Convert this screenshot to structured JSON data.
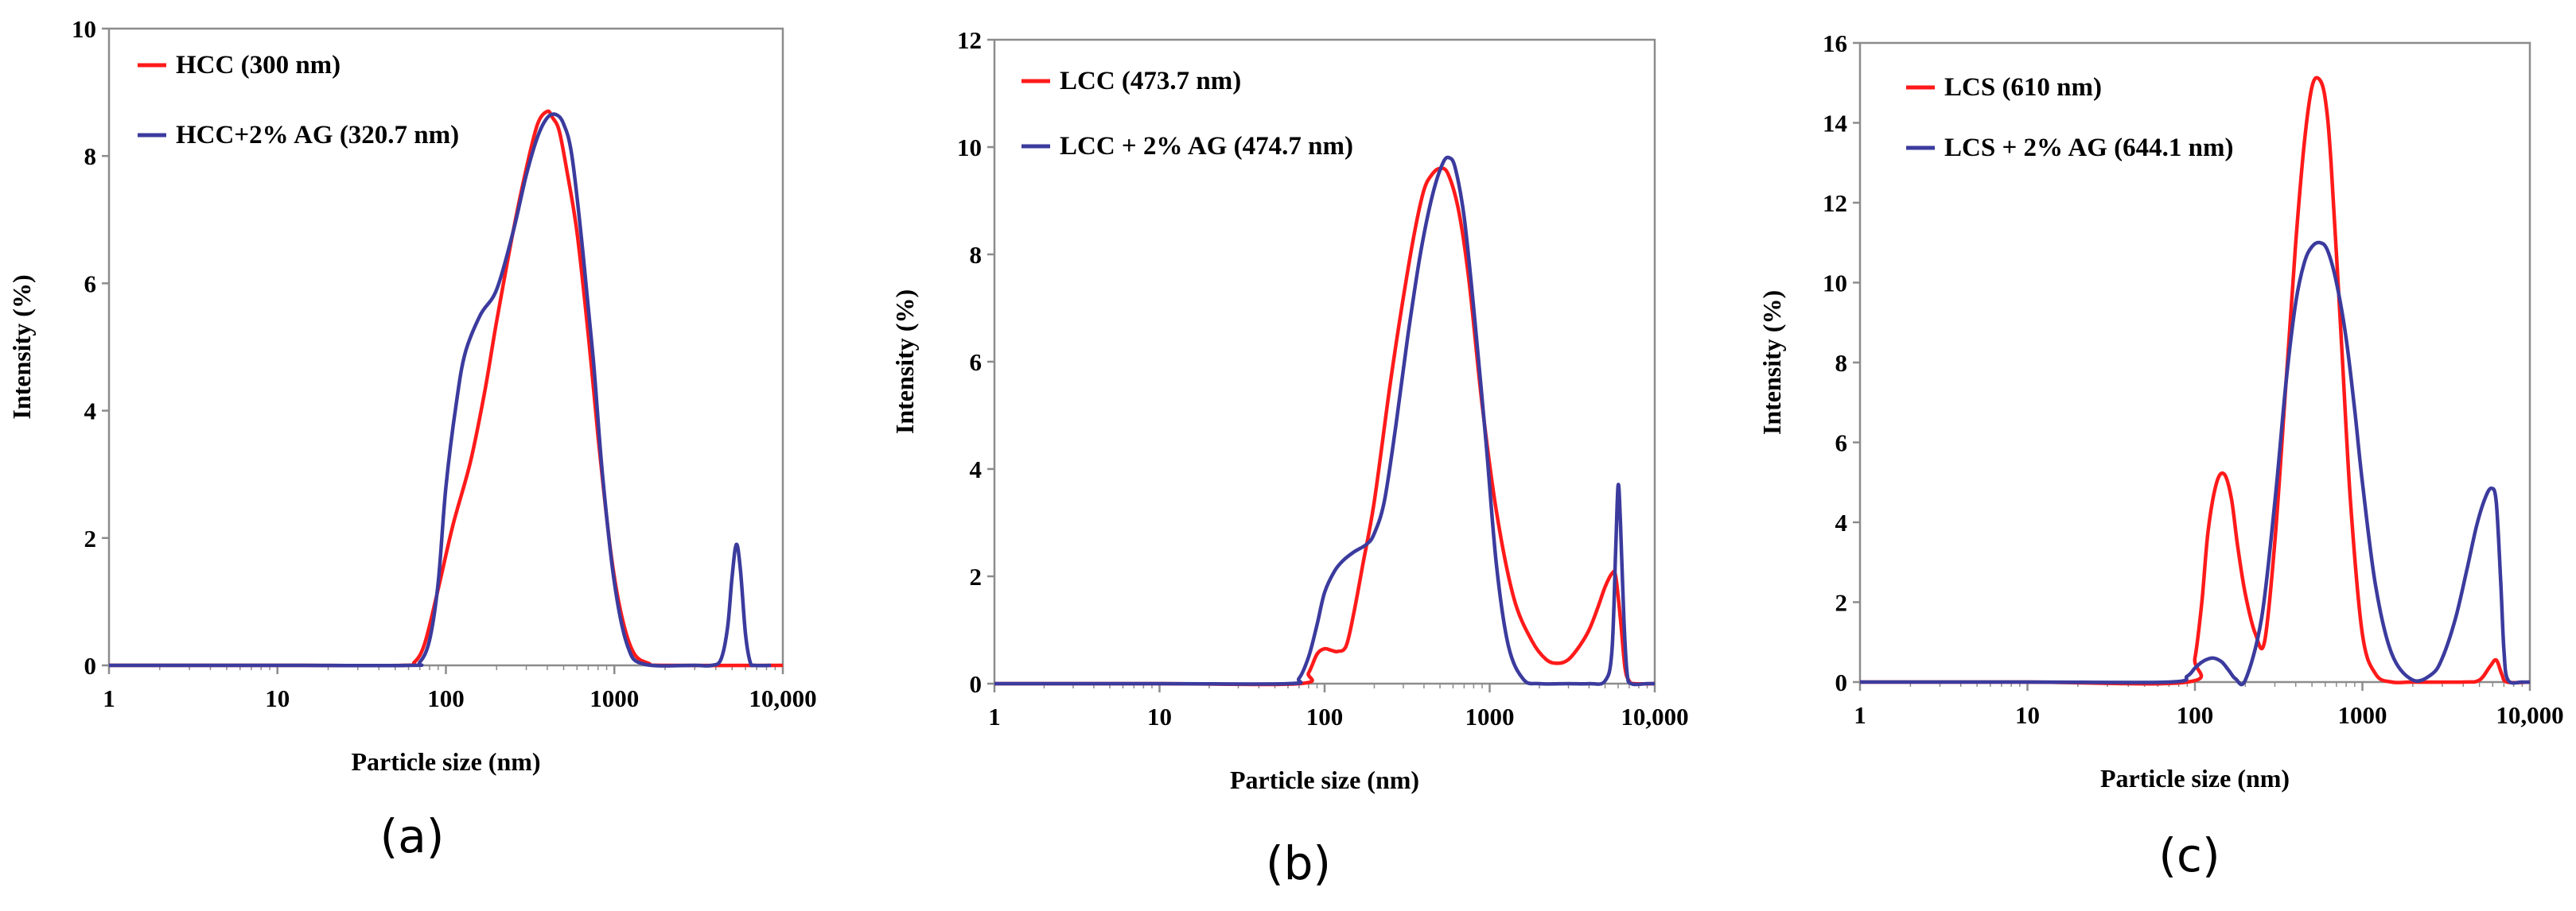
{
  "chart_data": [
    {
      "type": "line",
      "panel_label": "(a)",
      "xlabel": "Particle size (nm)",
      "ylabel": "Intensity (%)",
      "xscale": "log",
      "xlim": [
        1,
        10000
      ],
      "ylim": [
        0,
        10
      ],
      "xticks": [
        1,
        10,
        100,
        1000,
        10000
      ],
      "xtick_labels": [
        "1",
        "10",
        "100",
        "1000",
        "10,000"
      ],
      "yticks": [
        0,
        2,
        4,
        6,
        8,
        10
      ],
      "ytick_labels": [
        "0",
        "2",
        "4",
        "6",
        "8",
        "10"
      ],
      "legend_position": "top-left",
      "series": [
        {
          "name": "HCC (300 nm)",
          "color": "#ff1a1a",
          "x": [
            1,
            10,
            55,
            65,
            75,
            90,
            110,
            140,
            170,
            200,
            250,
            300,
            350,
            400,
            430,
            470,
            520,
            600,
            700,
            800,
            950,
            1100,
            1300,
            1600,
            2000,
            10000
          ],
          "y": [
            0,
            0,
            0,
            0.05,
            0.35,
            1.2,
            2.2,
            3.2,
            4.3,
            5.4,
            6.8,
            7.8,
            8.5,
            8.7,
            8.6,
            8.4,
            7.8,
            6.8,
            5.2,
            3.6,
            1.8,
            0.8,
            0.2,
            0.03,
            0,
            0
          ]
        },
        {
          "name": "HCC+2% AG (320.7 nm)",
          "color": "#3b3b9e",
          "x": [
            1,
            10,
            60,
            70,
            80,
            90,
            100,
            115,
            130,
            160,
            200,
            250,
            300,
            350,
            400,
            450,
            500,
            560,
            650,
            750,
            850,
            1000,
            1200,
            1500,
            3000,
            3800,
            4300,
            4700,
            5000,
            5300,
            5600,
            6000,
            6400,
            6800,
            8500
          ],
          "y": [
            0,
            0,
            0,
            0.05,
            0.4,
            1.3,
            2.8,
            4.1,
            4.9,
            5.5,
            5.9,
            6.8,
            7.7,
            8.3,
            8.6,
            8.65,
            8.5,
            8.0,
            6.5,
            4.8,
            3.0,
            1.3,
            0.3,
            0.02,
            0,
            0,
            0.1,
            0.6,
            1.4,
            1.9,
            1.5,
            0.5,
            0.05,
            0,
            0
          ]
        }
      ]
    },
    {
      "type": "line",
      "panel_label": "(b)",
      "xlabel": "Particle size (nm)",
      "ylabel": "Intensity (%)",
      "xscale": "log",
      "xlim": [
        1,
        10000
      ],
      "ylim": [
        0,
        12
      ],
      "xticks": [
        1,
        10,
        100,
        1000,
        10000
      ],
      "xtick_labels": [
        "1",
        "10",
        "100",
        "1000",
        "10,000"
      ],
      "yticks": [
        0,
        2,
        4,
        6,
        8,
        10,
        12
      ],
      "ytick_labels": [
        "0",
        "2",
        "4",
        "6",
        "8",
        "10",
        "12"
      ],
      "legend_position": "top-left",
      "series": [
        {
          "name": "LCC (473.7 nm)",
          "color": "#ff1a1a",
          "x": [
            1,
            10,
            70,
            80,
            90,
            100,
            110,
            120,
            135,
            150,
            170,
            200,
            250,
            300,
            350,
            400,
            450,
            500,
            560,
            650,
            750,
            900,
            1100,
            1400,
            1800,
            2200,
            2600,
            3000,
            3500,
            4000,
            4500,
            5000,
            5500,
            5800,
            6200,
            6600,
            7000,
            7500,
            10000
          ],
          "y": [
            0,
            0,
            0,
            0.2,
            0.55,
            0.65,
            0.62,
            0.6,
            0.7,
            1.3,
            2.2,
            3.4,
            5.6,
            7.2,
            8.4,
            9.2,
            9.5,
            9.6,
            9.5,
            8.8,
            7.5,
            5.2,
            3.2,
            1.6,
            0.8,
            0.45,
            0.38,
            0.45,
            0.7,
            1.0,
            1.4,
            1.8,
            2.05,
            2.0,
            1.2,
            0.3,
            0.05,
            0,
            0
          ]
        },
        {
          "name": "LCC + 2% AG (474.7 nm)",
          "color": "#3b3b9e",
          "x": [
            1,
            10,
            60,
            70,
            80,
            90,
            100,
            115,
            130,
            150,
            180,
            200,
            230,
            270,
            320,
            380,
            450,
            520,
            570,
            620,
            700,
            800,
            950,
            1100,
            1300,
            1600,
            2000,
            3000,
            4000,
            5000,
            5500,
            5800,
            6000,
            6200,
            6500,
            6800,
            7200,
            9000,
            10000
          ],
          "y": [
            0,
            0,
            0,
            0.1,
            0.5,
            1.1,
            1.7,
            2.1,
            2.3,
            2.45,
            2.6,
            2.8,
            3.4,
            4.8,
            6.5,
            8.0,
            9.1,
            9.7,
            9.8,
            9.6,
            8.7,
            7.0,
            4.5,
            2.2,
            0.7,
            0.08,
            0,
            0,
            0,
            0.05,
            0.6,
            2.5,
            3.7,
            3.0,
            1.2,
            0.2,
            0,
            0,
            0
          ]
        }
      ]
    },
    {
      "type": "line",
      "panel_label": "(c)",
      "xlabel": "Particle size (nm)",
      "ylabel": "Intensity (%)",
      "xscale": "log",
      "xlim": [
        1,
        10000
      ],
      "ylim": [
        0,
        16
      ],
      "xticks": [
        1,
        10,
        100,
        1000,
        10000
      ],
      "xtick_labels": [
        "1",
        "10",
        "100",
        "1000",
        "10,000"
      ],
      "yticks": [
        0,
        2,
        4,
        6,
        8,
        10,
        12,
        14,
        16
      ],
      "ytick_labels": [
        "0",
        "2",
        "4",
        "6",
        "8",
        "10",
        "12",
        "14",
        "16"
      ],
      "legend_position": "top-left",
      "series": [
        {
          "name": "LCS (610 nm)",
          "color": "#ff1a1a",
          "x": [
            1,
            10,
            90,
            100,
            110,
            120,
            135,
            150,
            165,
            180,
            200,
            230,
            260,
            300,
            350,
            400,
            450,
            500,
            550,
            600,
            650,
            750,
            850,
            1000,
            1200,
            1500,
            2000,
            4000,
            5000,
            5800,
            6300,
            6800,
            7300,
            10000
          ],
          "y": [
            0,
            0,
            0,
            0.6,
            2.0,
            3.8,
            5.0,
            5.2,
            4.6,
            3.4,
            2.2,
            1.2,
            1.0,
            3.5,
            7.5,
            11.0,
            13.5,
            14.9,
            15.1,
            14.6,
            13.0,
            8.5,
            4.5,
            1.2,
            0.2,
            0,
            0,
            0,
            0.05,
            0.4,
            0.55,
            0.2,
            0,
            0
          ]
        },
        {
          "name": "LCS + 2% AG (644.1 nm)",
          "color": "#3b3b9e",
          "x": [
            1,
            10,
            70,
            90,
            100,
            110,
            120,
            130,
            145,
            160,
            175,
            200,
            250,
            300,
            350,
            400,
            450,
            500,
            560,
            620,
            700,
            800,
            900,
            1000,
            1200,
            1500,
            2000,
            2600,
            3000,
            3600,
            4200,
            4800,
            5400,
            5900,
            6300,
            6700,
            7000,
            7400,
            9000,
            10000
          ],
          "y": [
            0,
            0,
            0,
            0.15,
            0.35,
            0.5,
            0.58,
            0.6,
            0.5,
            0.28,
            0.08,
            0.05,
            1.6,
            4.5,
            7.5,
            9.5,
            10.5,
            10.9,
            11.0,
            10.8,
            10.0,
            8.6,
            6.8,
            5.0,
            2.4,
            0.7,
            0.05,
            0.2,
            0.6,
            1.6,
            2.8,
            3.9,
            4.6,
            4.85,
            4.5,
            2.5,
            0.8,
            0.05,
            0,
            0
          ]
        }
      ]
    }
  ]
}
